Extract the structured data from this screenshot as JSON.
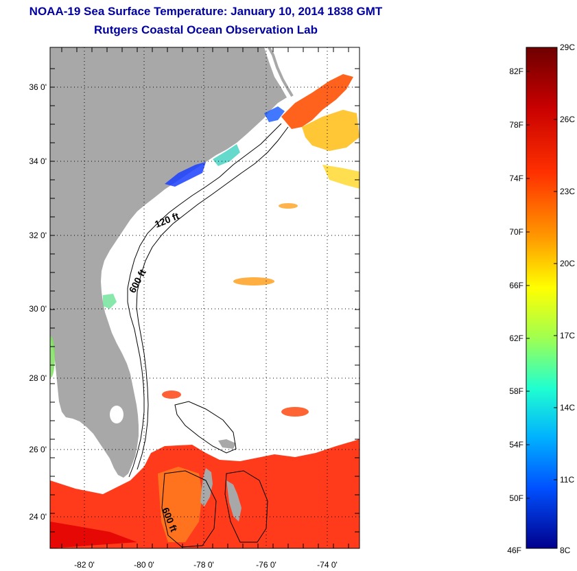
{
  "title": "NOAA-19 Sea Surface Temperature:  January 10, 2014 1838 GMT",
  "subtitle": "Rutgers Coastal Ocean Observation Lab",
  "map": {
    "lat_ticks": [
      "36 0'",
      "34 0'",
      "32 0'",
      "30 0'",
      "28 0'",
      "26 0'",
      "24 0'"
    ],
    "lon_ticks": [
      "-82 0'",
      "-80 0'",
      "-78 0'",
      "-76 0'",
      "-74 0'"
    ],
    "isobath_labels": [
      "120 ft",
      "600 ft",
      "600 ft"
    ],
    "land_color": "#a8a8a8"
  },
  "colorbar": {
    "f_labels": [
      "82F",
      "78F",
      "74F",
      "70F",
      "66F",
      "62F",
      "58F",
      "54F",
      "50F",
      "46F"
    ],
    "c_labels": [
      "29C",
      "26C",
      "23C",
      "20C",
      "17C",
      "14C",
      "11C",
      "8C"
    ],
    "colors": [
      "#7a0000",
      "#e00000",
      "#ff7f00",
      "#ffff00",
      "#7fff7f",
      "#00ffff",
      "#007fff",
      "#0000a0"
    ]
  }
}
